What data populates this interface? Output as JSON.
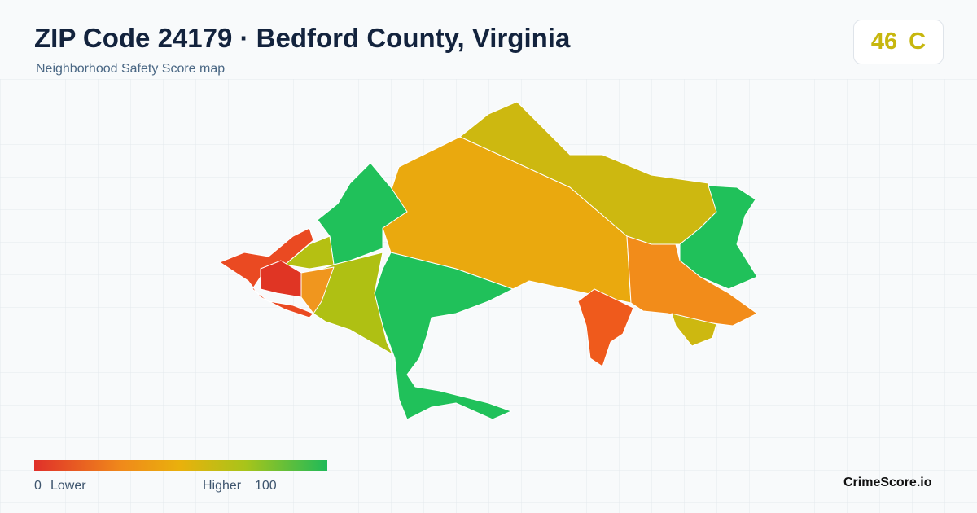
{
  "header": {
    "title": "ZIP Code 24179 · Bedford County, Virginia",
    "subtitle": "Neighborhood Safety Score map"
  },
  "score": {
    "value": 46,
    "grade": "C"
  },
  "legend": {
    "min": 0,
    "min_label": "Lower",
    "max_label": "Higher",
    "max": 100
  },
  "brand": "CrimeScore.io"
}
